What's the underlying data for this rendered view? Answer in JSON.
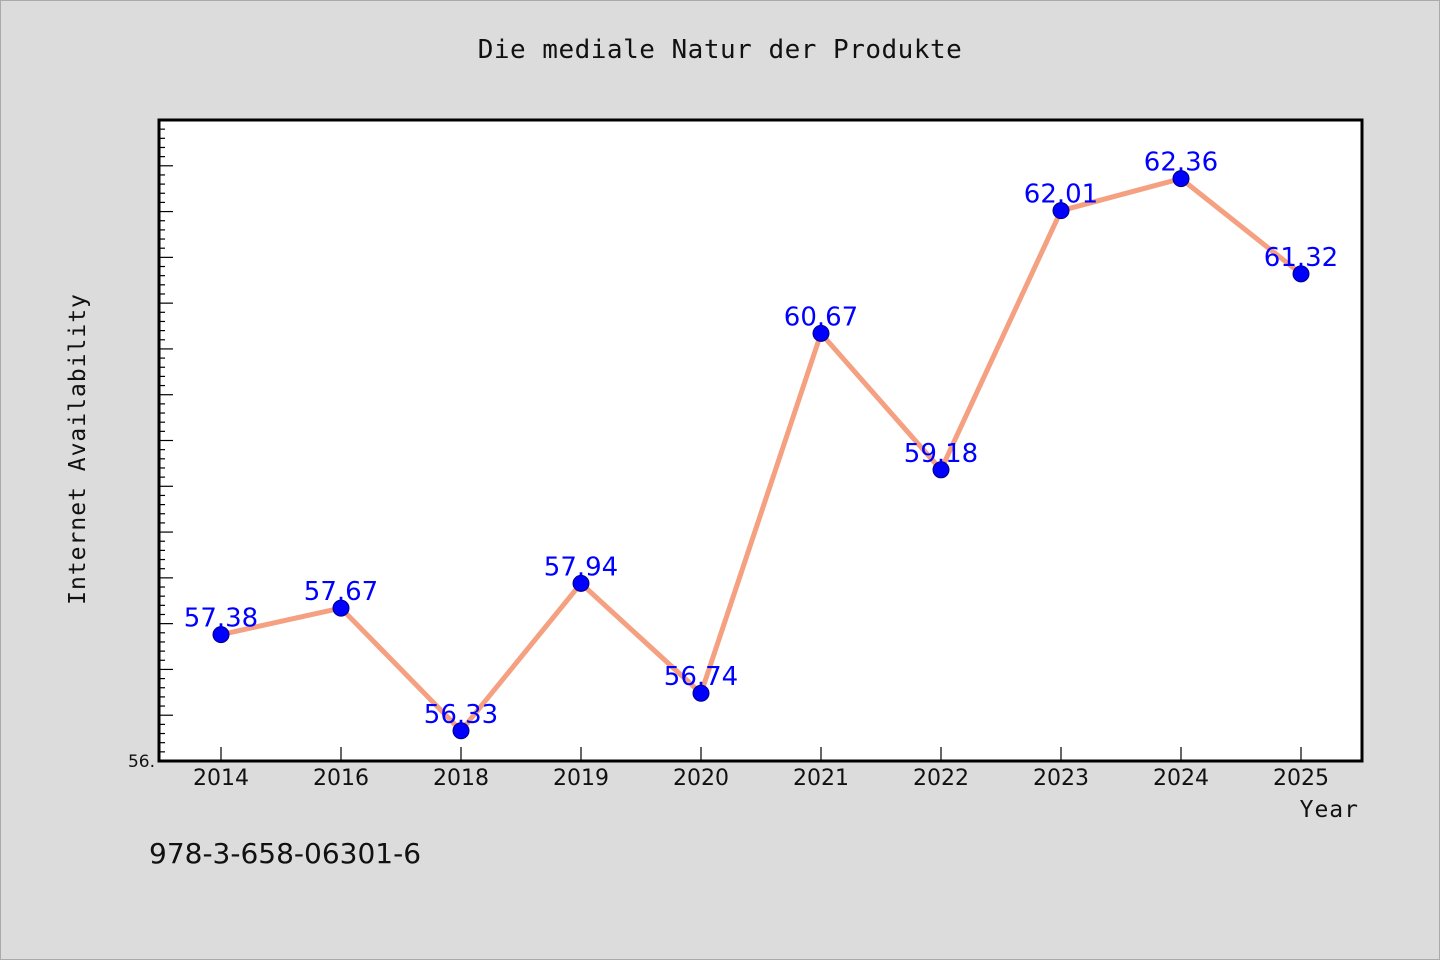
{
  "footer_text": "978-3-658-06301-6",
  "chart_data": {
    "type": "line",
    "title": "Die mediale Natur der Produkte",
    "xlabel": "Year",
    "ylabel": "Internet Availability",
    "categories": [
      "2014",
      "2016",
      "2018",
      "2019",
      "2020",
      "2021",
      "2022",
      "2023",
      "2024",
      "2025"
    ],
    "values": [
      57.38,
      57.67,
      56.33,
      57.94,
      56.74,
      60.67,
      59.18,
      62.01,
      62.36,
      61.32
    ],
    "data_labels": [
      "57.38",
      "57.67",
      "56.33",
      "57.94",
      "56.74",
      "60.67",
      "59.18",
      "62.01",
      "62.36",
      "61.32"
    ],
    "ylim": [
      56.0,
      63.0
    ],
    "y_min_label": "56.",
    "grid": false,
    "legend": "none",
    "colors": {
      "line": "#f4a081",
      "marker": "#0000ff",
      "marker_edge": "#000080",
      "data_label": "#0000ff",
      "plot_background": "#ffffff",
      "page_background": "#dcdcdc"
    }
  }
}
